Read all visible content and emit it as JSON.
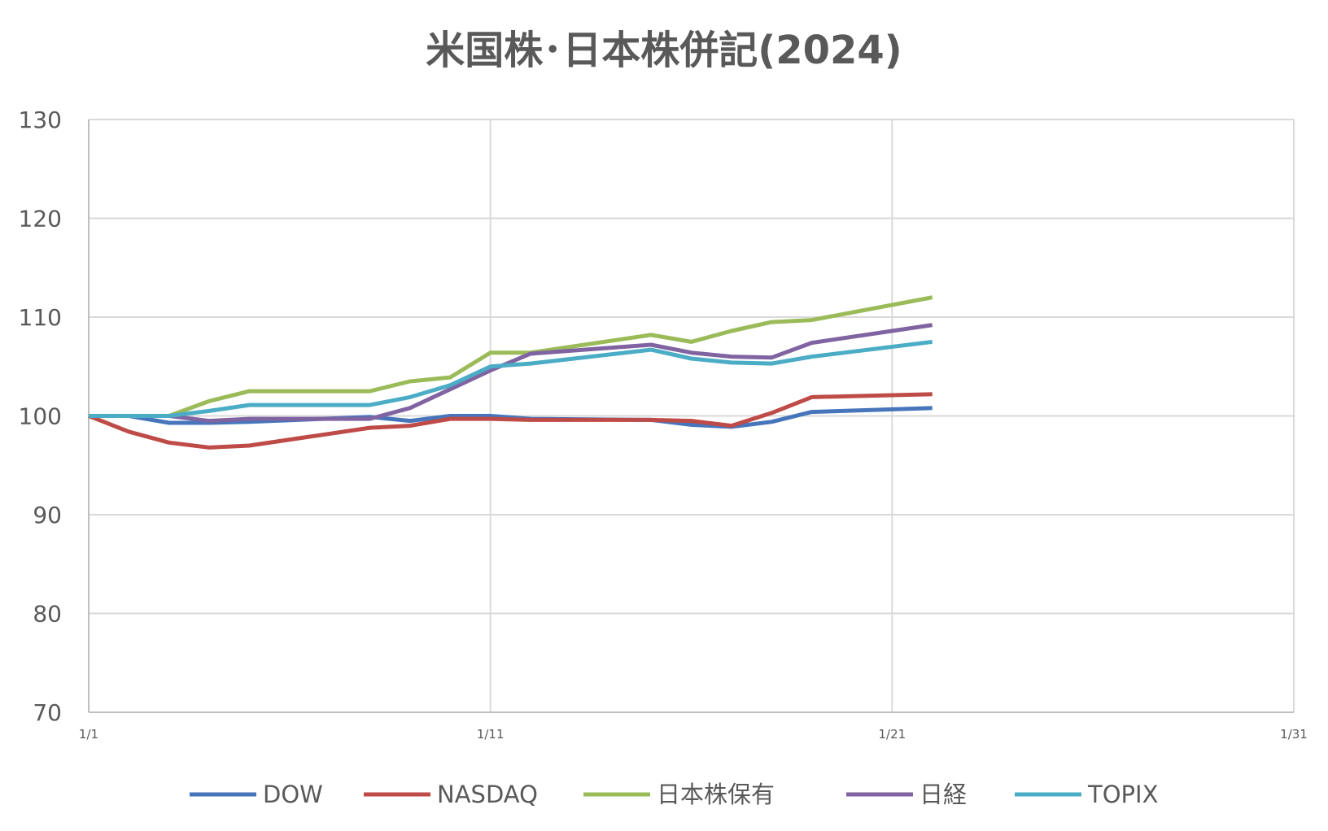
{
  "chart_data": {
    "type": "line",
    "title": "米国株･日本株併記(2024)",
    "xlabel": "",
    "ylabel": "",
    "ylim": [
      70,
      130
    ],
    "yticks": [
      70,
      80,
      90,
      100,
      110,
      120,
      130
    ],
    "xlim_days": [
      1,
      31
    ],
    "xticks": [
      {
        "day": 1,
        "label": "1/1"
      },
      {
        "day": 11,
        "label": "1/11"
      },
      {
        "day": 21,
        "label": "1/21"
      },
      {
        "day": 31,
        "label": "1/31"
      }
    ],
    "grid": true,
    "legend_position": "bottom",
    "x": [
      1,
      2,
      3,
      4,
      5,
      8,
      9,
      10,
      11,
      12,
      15,
      16,
      17,
      18,
      19,
      22
    ],
    "series": [
      {
        "name": "DOW",
        "color": "#4675BB",
        "values": [
          100,
          100,
          99.3,
          99.3,
          99.4,
          99.9,
          99.5,
          100,
          100,
          99.7,
          99.6,
          99.1,
          98.9,
          99.4,
          100.4,
          100.8
        ]
      },
      {
        "name": "NASDAQ",
        "color": "#BE4B48",
        "values": [
          100,
          98.4,
          97.3,
          96.8,
          97.0,
          98.8,
          99.0,
          99.7,
          99.7,
          99.6,
          99.6,
          99.5,
          99.0,
          100.3,
          101.9,
          102.2
        ]
      },
      {
        "name": "日本株保有",
        "color": "#9BBB59",
        "values": [
          100,
          100,
          100,
          101.5,
          102.5,
          102.5,
          103.5,
          103.9,
          106.4,
          106.4,
          108.2,
          107.5,
          108.6,
          109.5,
          109.7,
          112.0
        ]
      },
      {
        "name": "日経",
        "color": "#8064A2",
        "values": [
          100,
          100,
          100,
          99.5,
          99.7,
          99.7,
          100.8,
          102.7,
          104.6,
          106.3,
          107.2,
          106.4,
          106.0,
          105.9,
          107.4,
          109.2
        ]
      },
      {
        "name": "TOPIX",
        "color": "#4BACC6",
        "values": [
          100,
          100,
          100,
          100.5,
          101.1,
          101.1,
          101.9,
          103.1,
          105.0,
          105.3,
          106.7,
          105.8,
          105.4,
          105.3,
          106.0,
          107.5
        ]
      }
    ]
  }
}
